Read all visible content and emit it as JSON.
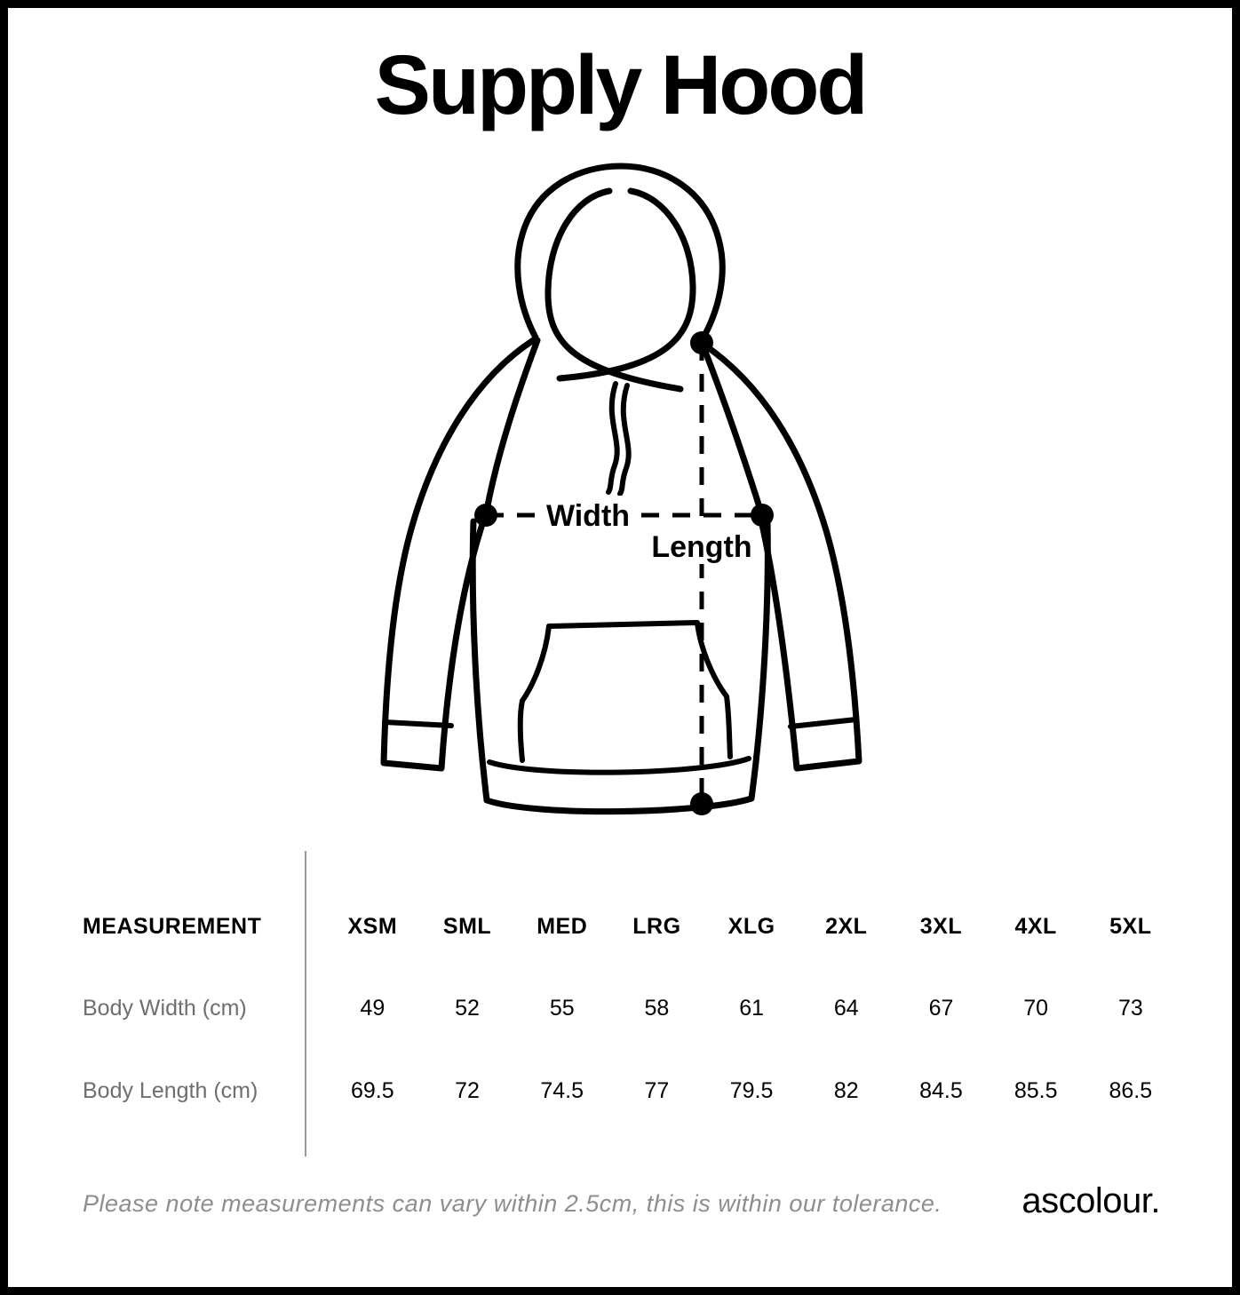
{
  "title": "Supply Hood",
  "diagram": {
    "width_label": "Width",
    "length_label": "Length"
  },
  "table": {
    "header": [
      "MEASUREMENT",
      "XSM",
      "SML",
      "MED",
      "LRG",
      "XLG",
      "2XL",
      "3XL",
      "4XL",
      "5XL"
    ],
    "rows": [
      {
        "label": "Body Width (cm)",
        "values": [
          "49",
          "52",
          "55",
          "58",
          "61",
          "64",
          "67",
          "70",
          "73"
        ]
      },
      {
        "label": "Body Length (cm)",
        "values": [
          "69.5",
          "72",
          "74.5",
          "77",
          "79.5",
          "82",
          "84.5",
          "85.5",
          "86.5"
        ]
      }
    ]
  },
  "footer": {
    "note": "Please note measurements can vary within 2.5cm, this is within our tolerance.",
    "brand": "ascolour."
  },
  "colors": {
    "ink": "#000000",
    "muted": "#6e6e6e",
    "note": "#8e8e8e",
    "divider": "#9a9a9a",
    "background": "#ffffff",
    "border": "#000000"
  }
}
